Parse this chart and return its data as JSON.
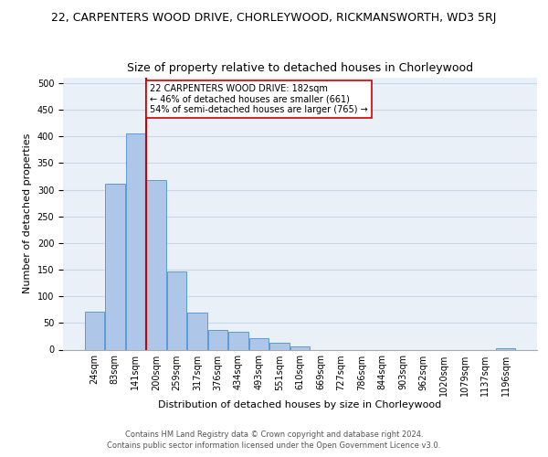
{
  "super_title": "22, CARPENTERS WOOD DRIVE, CHORLEYWOOD, RICKMANSWORTH, WD3 5RJ",
  "title": "Size of property relative to detached houses in Chorleywood",
  "xlabel": "Distribution of detached houses by size in Chorleywood",
  "ylabel": "Number of detached properties",
  "bar_labels": [
    "24sqm",
    "83sqm",
    "141sqm",
    "200sqm",
    "259sqm",
    "317sqm",
    "376sqm",
    "434sqm",
    "493sqm",
    "551sqm",
    "610sqm",
    "669sqm",
    "727sqm",
    "786sqm",
    "844sqm",
    "903sqm",
    "962sqm",
    "1020sqm",
    "1079sqm",
    "1137sqm",
    "1196sqm"
  ],
  "bar_values": [
    72,
    311,
    405,
    318,
    147,
    70,
    37,
    34,
    21,
    13,
    6,
    0,
    0,
    0,
    0,
    0,
    0,
    0,
    0,
    0,
    3
  ],
  "bar_color": "#aec6e8",
  "bar_edge_color": "#5b9bd5",
  "vline_x": 2.5,
  "vline_color": "#cc0000",
  "annotation_title": "22 CARPENTERS WOOD DRIVE: 182sqm",
  "annotation_line1": "← 46% of detached houses are smaller (661)",
  "annotation_line2": "54% of semi-detached houses are larger (765) →",
  "annotation_box_color": "#ffffff",
  "annotation_box_edge": "#cc0000",
  "ylim": [
    0,
    510
  ],
  "yticks": [
    0,
    50,
    100,
    150,
    200,
    250,
    300,
    350,
    400,
    450,
    500
  ],
  "footer1": "Contains HM Land Registry data © Crown copyright and database right 2024.",
  "footer2": "Contains public sector information licensed under the Open Government Licence v3.0.",
  "super_title_fontsize": 9,
  "title_fontsize": 9,
  "axis_label_fontsize": 8,
  "tick_fontsize": 7,
  "annotation_fontsize": 7,
  "footer_fontsize": 6,
  "grid_color": "#c8d8e8",
  "background_color": "#eaf0f8"
}
